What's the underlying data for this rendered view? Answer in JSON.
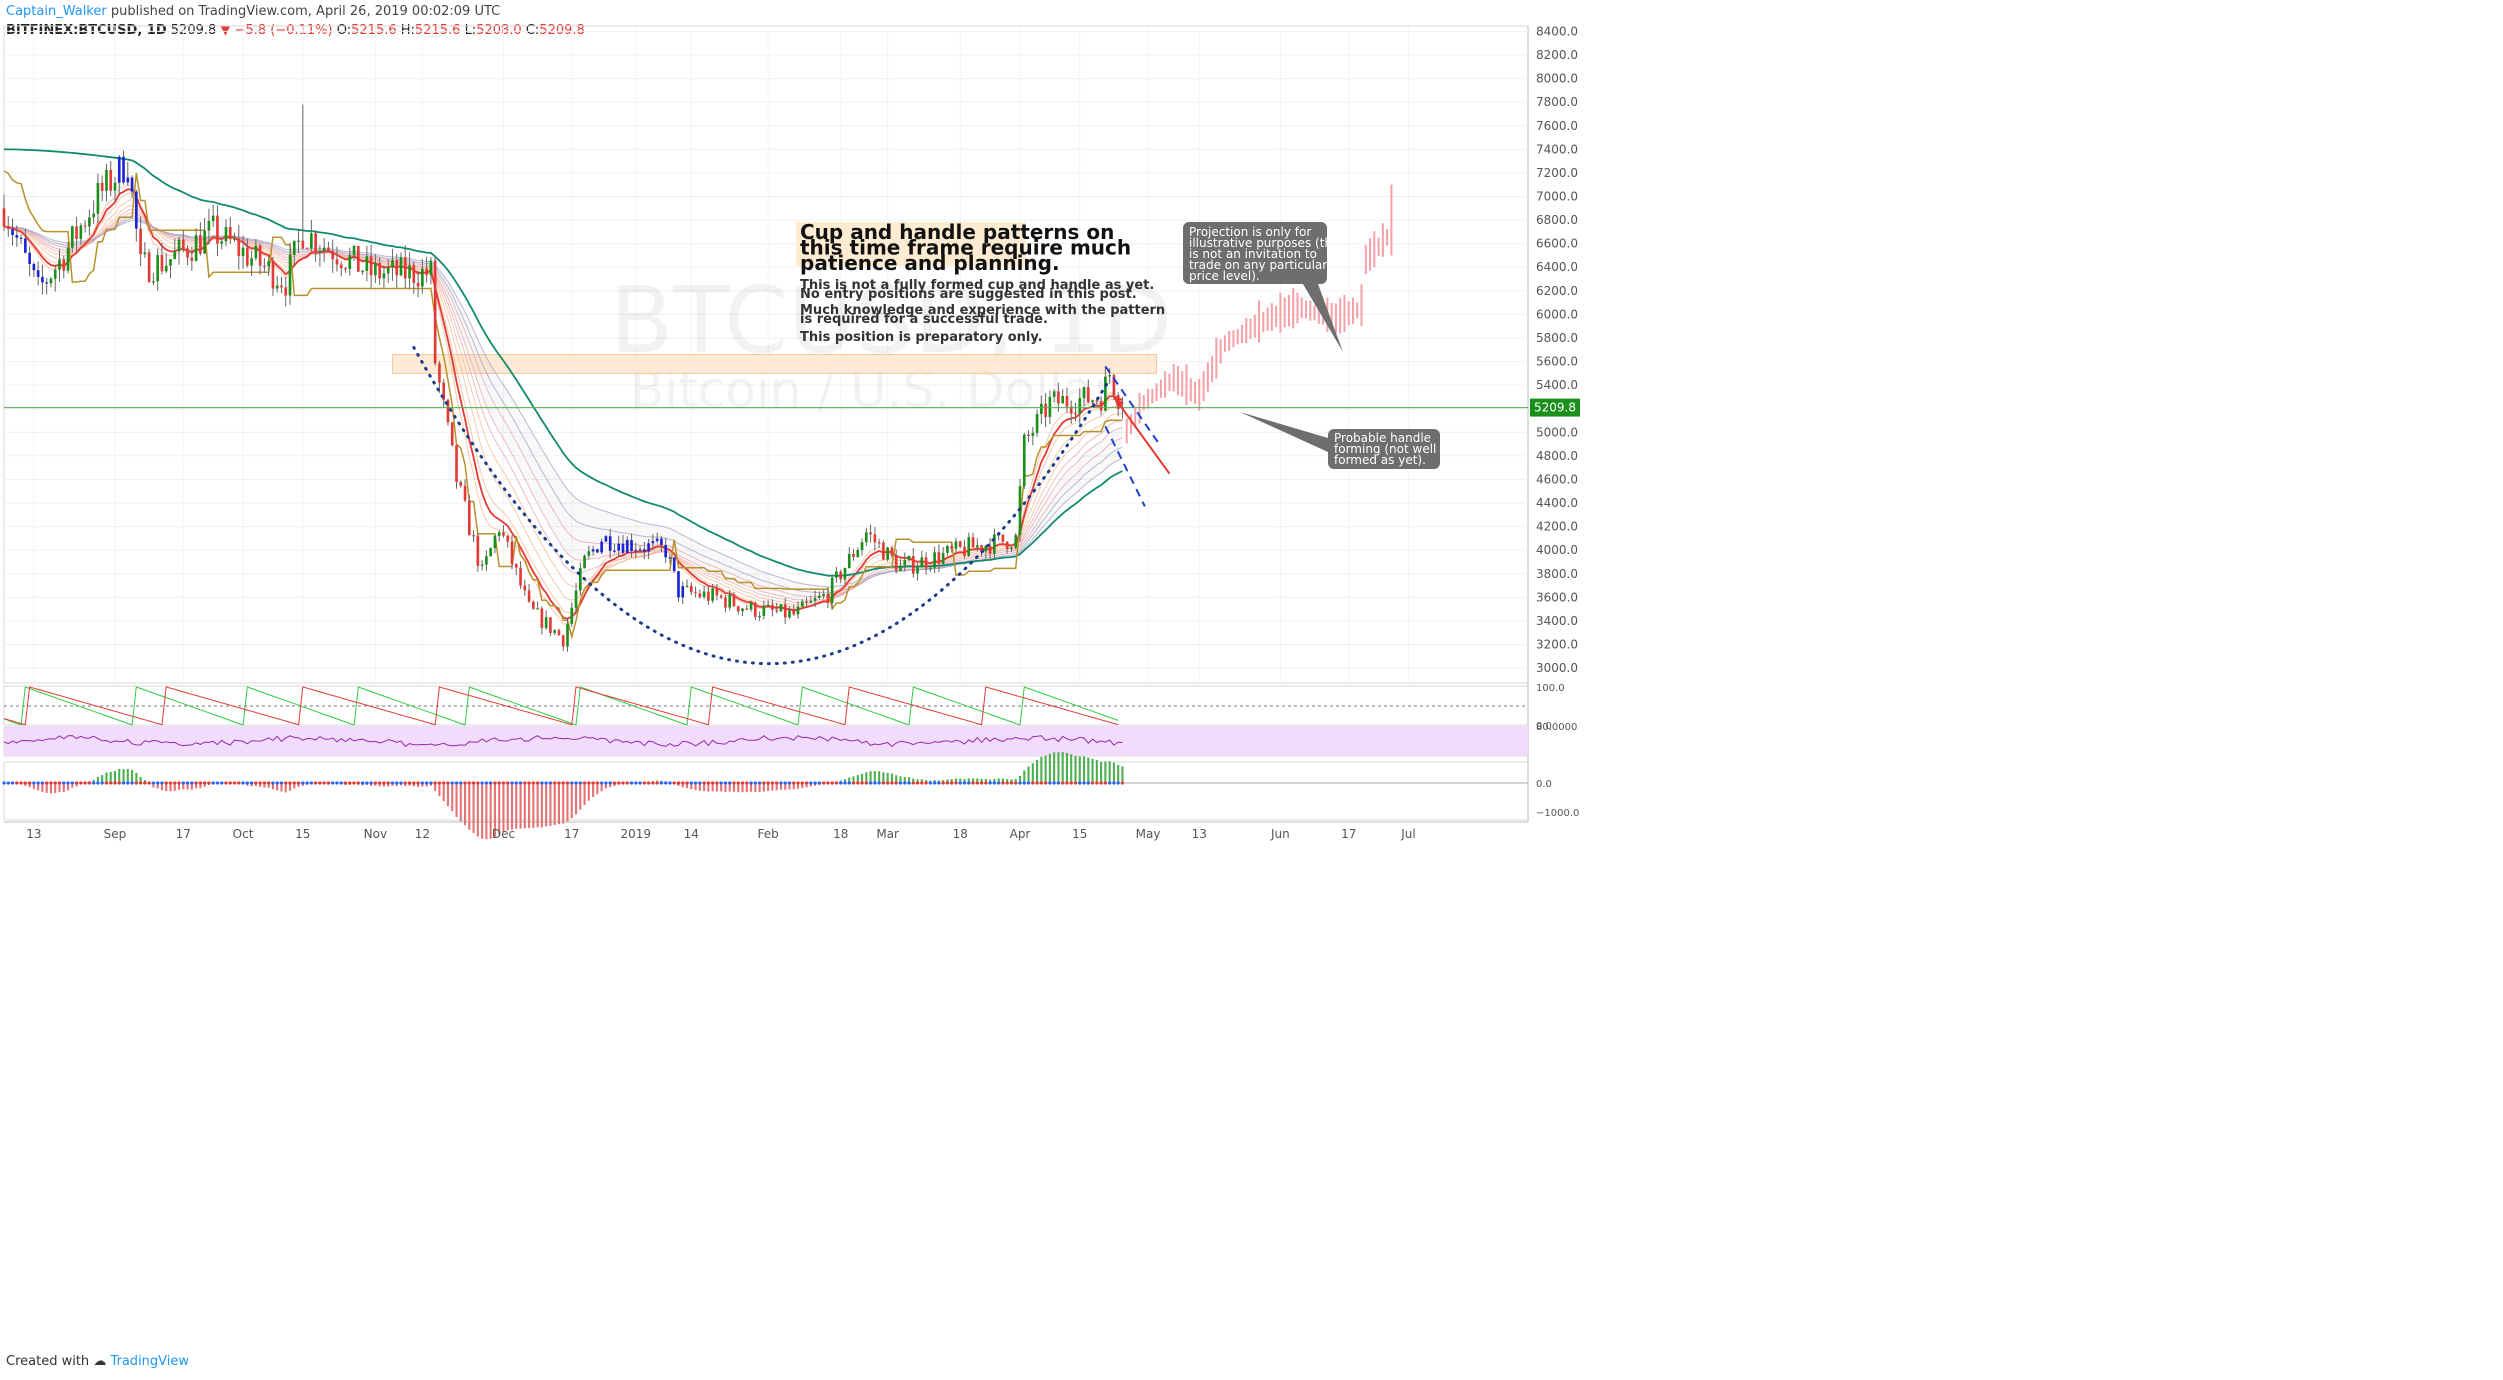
{
  "header": {
    "author": "Captain_Walker",
    "published": "published on TradingView.com, April 26, 2019 00:02:09 UTC",
    "symbol": "BITFINEX:BTCUSD, 1D",
    "last": "5209.8",
    "change": "▼ −5.8 (−0.11%)",
    "o_label": "O:",
    "o": "5215.6",
    "h_label": "H:",
    "h": "5215.6",
    "l_label": "L:",
    "l": "5208.0",
    "c_label": "C:",
    "c": "5209.8"
  },
  "watermark": {
    "symbol": "BTCUSD, 1D",
    "name": "Bitcoin / U.S. Dollar"
  },
  "annotations": {
    "title_lines": [
      "Cup and handle patterns on",
      "this time frame require much",
      "patience and planning."
    ],
    "text_lines": [
      "This is not a fully formed cup and handle as yet.",
      "No entry positions are suggested in this post.",
      "Much knowledge and experience with the pattern",
      "is required for a successful trade.",
      "This position is preparatory only."
    ],
    "bubble1": [
      "Projection is only for",
      "illustrative purposes (this",
      "is not an invitation to",
      "trade on any particular",
      "price level)."
    ],
    "bubble2": [
      "Probable handle",
      "forming (not well",
      "formed as yet)."
    ]
  },
  "price_label": "5209.8",
  "footer": {
    "created": "Created with",
    "brand": "TradingView"
  },
  "colors": {
    "up_green": "#1b8f1b",
    "down_red": "#e53935",
    "blue_bar": "#1a24d6",
    "projection": "#f4a0a6",
    "ema_teal": "#128a6e",
    "supertrend": "#b8912b",
    "cup_dots": "#1a3d8c",
    "highlight": "#fde3c8",
    "rsi_band": "#f1dcfb",
    "rsi_line": "#9c27b0",
    "bubble": "#6e6e6e"
  },
  "chart_data": [
    {
      "type": "candlestick",
      "title": "BITFINEX:BTCUSD, 1D",
      "ylim": [
        2840,
        8480
      ],
      "y_ticks": [
        "8400.0",
        "8200.0",
        "8000.0",
        "7800.0",
        "7600.0",
        "7400.0",
        "7200.0",
        "7000.0",
        "6800.0",
        "6600.0",
        "6400.0",
        "6200.0",
        "6000.0",
        "5800.0",
        "5600.0",
        "5400.0",
        "5200.0",
        "5000.0",
        "4800.0",
        "4600.0",
        "4400.0",
        "4200.0",
        "4000.0",
        "3800.0",
        "3600.0",
        "3400.0",
        "3200.0",
        "3000.0"
      ],
      "x_ticks": [
        "13",
        "Sep",
        "17",
        "Oct",
        "15",
        "Nov",
        "12",
        "Dec",
        "17",
        "2019",
        "14",
        "Feb",
        "18",
        "Mar",
        "18",
        "Apr",
        "15",
        "May",
        "13",
        "Jun",
        "17",
        "Jul"
      ],
      "x_range": [
        "Aug 6, 2018",
        "Jul 29, 2019"
      ],
      "anchors": [
        [
          "2018-08-06",
          6900
        ],
        [
          "2018-08-14",
          6200
        ],
        [
          "2018-08-20",
          6500
        ],
        [
          "2018-08-28",
          7000
        ],
        [
          "2018-09-04",
          7300
        ],
        [
          "2018-09-07",
          6400
        ],
        [
          "2018-09-13",
          6450
        ],
        [
          "2018-09-24",
          6700
        ],
        [
          "2018-10-11",
          6280
        ],
        [
          "2018-10-15",
          6700
        ],
        [
          "2018-10-31",
          6350
        ],
        [
          "2018-11-14",
          6350
        ],
        [
          "2018-11-15",
          5600
        ],
        [
          "2018-11-20",
          4600
        ],
        [
          "2018-11-26",
          3800
        ],
        [
          "2018-11-30",
          4200
        ],
        [
          "2018-12-07",
          3500
        ],
        [
          "2018-12-15",
          3250
        ],
        [
          "2018-12-20",
          3900
        ],
        [
          "2018-12-24",
          4100
        ],
        [
          "2019-01-08",
          4000
        ],
        [
          "2019-01-11",
          3650
        ],
        [
          "2019-01-20",
          3600
        ],
        [
          "2019-01-28",
          3500
        ],
        [
          "2019-02-07",
          3450
        ],
        [
          "2019-02-15",
          3630
        ],
        [
          "2019-02-24",
          4150
        ],
        [
          "2019-03-04",
          3850
        ],
        [
          "2019-03-20",
          4020
        ],
        [
          "2019-03-31",
          4100
        ],
        [
          "2019-04-02",
          4900
        ],
        [
          "2019-04-08",
          5250
        ],
        [
          "2019-04-20",
          5300
        ],
        [
          "2019-04-22",
          5500
        ],
        [
          "2019-04-25",
          5210
        ]
      ],
      "last_price": 5209.8,
      "highlight_zone": [
        5500,
        5660
      ],
      "projection": [
        [
          "2019-04-26",
          5000
        ],
        [
          "2019-04-30",
          5250
        ],
        [
          "2019-05-07",
          5450
        ],
        [
          "2019-05-13",
          5300
        ],
        [
          "2019-05-19",
          5750
        ],
        [
          "2019-05-29",
          5950
        ],
        [
          "2019-06-06",
          6050
        ],
        [
          "2019-06-14",
          5950
        ],
        [
          "2019-06-20",
          6050
        ],
        [
          "2019-06-21",
          6450
        ],
        [
          "2019-06-26",
          6650
        ]
      ],
      "cup_curve": {
        "left": [
          "2018-11-10",
          5720
        ],
        "bottom": [
          "2019-01-30",
          3040
        ],
        "right": [
          "2019-04-22",
          5450
        ]
      }
    },
    {
      "type": "line",
      "name": "Aroon",
      "y_ticks": [
        "100.0",
        "0.0"
      ],
      "ylim": [
        0,
        100
      ]
    },
    {
      "type": "line",
      "name": "RSI",
      "y_ticks": [
        "80.0000"
      ],
      "ylim": [
        20,
        80
      ]
    },
    {
      "type": "bar",
      "name": "Momentum histogram",
      "y_ticks": [
        "0.0",
        "−1000.0"
      ],
      "ylim": [
        -1300,
        450
      ]
    }
  ]
}
